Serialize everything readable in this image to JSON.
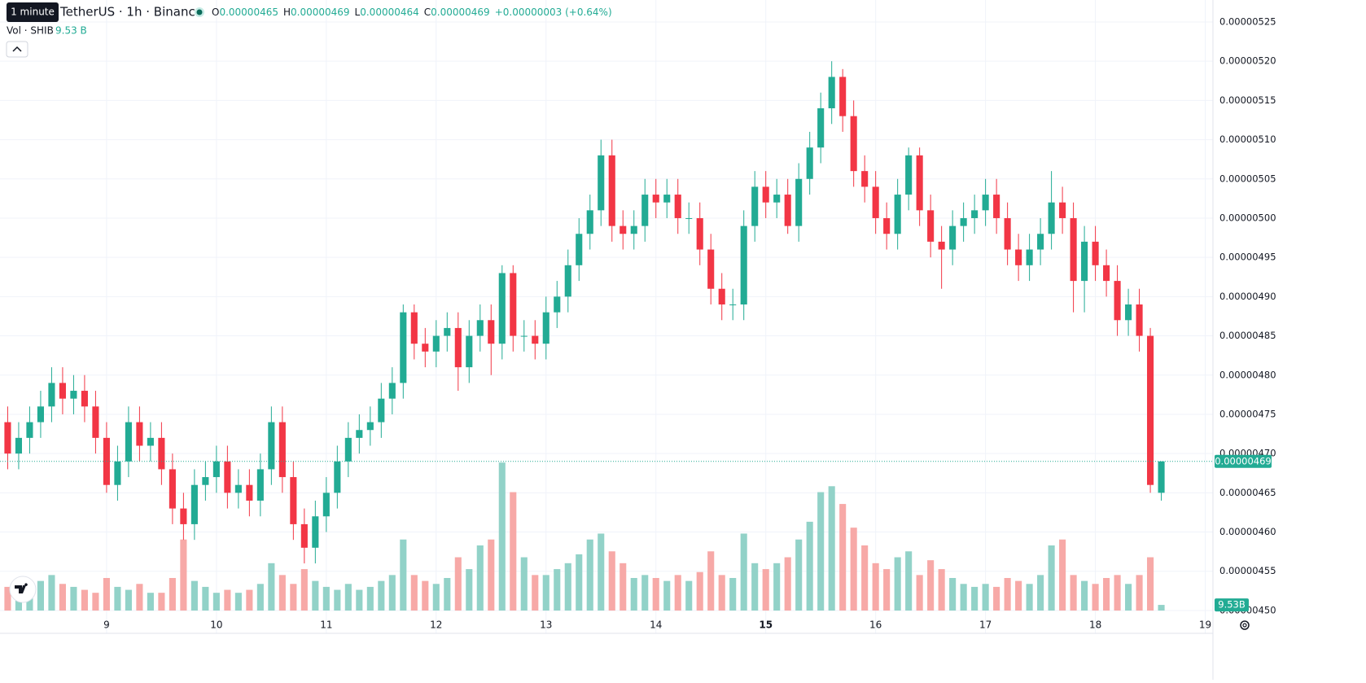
{
  "chart_data": {
    "type": "candlestick",
    "title": "TetherUS · 1h · Binance",
    "tooltip": "1 minute",
    "ohlc_legend": [
      "O",
      "0.00000465",
      "H",
      "0.00000469",
      "L",
      "0.00000464",
      "C",
      "0.00000469",
      "+0.00000003 (+0.64%)"
    ],
    "volume_legend": {
      "name": "Vol · SHIB",
      "value": "9.53 B"
    },
    "last_price_label": "0.00000469",
    "last_volume_label": "9.53B",
    "up_color": "#22ab94",
    "down_color": "#f23645",
    "up_volume_color": "#92d2c8",
    "down_volume_color": "#f7a9a7",
    "grid": true,
    "bold_xtick": 15,
    "xlim": [
      8.03,
      19.07
    ],
    "xticks": [
      9,
      10,
      11,
      12,
      13,
      14,
      15,
      16,
      17,
      18,
      19
    ],
    "ylim": [
      4.474e-06,
      5.278e-06
    ],
    "yticks": [
      {
        "value": 4.5e-06,
        "label": "0.00000450"
      },
      {
        "value": 4.55e-06,
        "label": "0.00000455"
      },
      {
        "value": 4.6e-06,
        "label": "0.00000460"
      },
      {
        "value": 4.65e-06,
        "label": "0.00000465"
      },
      {
        "value": 4.7e-06,
        "label": "0.00000470"
      },
      {
        "value": 4.75e-06,
        "label": "0.00000475"
      },
      {
        "value": 4.8e-06,
        "label": "0.00000480"
      },
      {
        "value": 4.85e-06,
        "label": "0.00000485"
      },
      {
        "value": 4.9e-06,
        "label": "0.00000490"
      },
      {
        "value": 4.95e-06,
        "label": "0.00000495"
      },
      {
        "value": 5e-06,
        "label": "0.00000500"
      },
      {
        "value": 5.05e-06,
        "label": "0.00000505"
      },
      {
        "value": 5.1e-06,
        "label": "0.00000510"
      },
      {
        "value": 5.15e-06,
        "label": "0.00000515"
      },
      {
        "value": 5.2e-06,
        "label": "0.00000520"
      },
      {
        "value": 5.25e-06,
        "label": "0.00000525"
      }
    ],
    "vlim": [
      0,
      330
    ],
    "x": [
      8.1,
      8.2,
      8.3,
      8.4,
      8.5,
      8.6,
      8.7,
      8.8,
      8.9,
      9.0,
      9.1,
      9.2,
      9.3,
      9.4,
      9.5,
      9.6,
      9.7,
      9.8,
      9.9,
      10.0,
      10.1,
      10.2,
      10.3,
      10.4,
      10.5,
      10.6,
      10.7,
      10.8,
      10.9,
      11.0,
      11.1,
      11.2,
      11.3,
      11.4,
      11.5,
      11.6,
      11.7,
      11.8,
      11.9,
      12.0,
      12.1,
      12.2,
      12.3,
      12.4,
      12.5,
      12.6,
      12.7,
      12.8,
      12.9,
      13.0,
      13.1,
      13.2,
      13.3,
      13.4,
      13.5,
      13.6,
      13.7,
      13.8,
      13.9,
      14.0,
      14.1,
      14.2,
      14.3,
      14.4,
      14.5,
      14.6,
      14.7,
      14.8,
      14.9,
      15.0,
      15.1,
      15.2,
      15.3,
      15.4,
      15.5,
      15.6,
      15.7,
      15.8,
      15.9,
      16.0,
      16.1,
      16.2,
      16.3,
      16.4,
      16.5,
      16.6,
      16.7,
      16.8,
      16.9,
      17.0,
      17.1,
      17.2,
      17.3,
      17.4,
      17.5,
      17.6,
      17.7,
      17.8,
      17.9,
      18.0,
      18.1,
      18.2,
      18.3,
      18.4,
      18.5,
      18.6
    ],
    "open": [
      4.74e-06,
      4.7e-06,
      4.72e-06,
      4.74e-06,
      4.76e-06,
      4.79e-06,
      4.77e-06,
      4.78e-06,
      4.76e-06,
      4.72e-06,
      4.66e-06,
      4.69e-06,
      4.74e-06,
      4.71e-06,
      4.72e-06,
      4.68e-06,
      4.63e-06,
      4.61e-06,
      4.66e-06,
      4.67e-06,
      4.69e-06,
      4.65e-06,
      4.66e-06,
      4.64e-06,
      4.68e-06,
      4.74e-06,
      4.67e-06,
      4.61e-06,
      4.58e-06,
      4.62e-06,
      4.65e-06,
      4.69e-06,
      4.72e-06,
      4.73e-06,
      4.74e-06,
      4.77e-06,
      4.79e-06,
      4.88e-06,
      4.84e-06,
      4.83e-06,
      4.85e-06,
      4.86e-06,
      4.81e-06,
      4.85e-06,
      4.87e-06,
      4.84e-06,
      4.93e-06,
      4.85e-06,
      4.85e-06,
      4.84e-06,
      4.88e-06,
      4.9e-06,
      4.94e-06,
      4.98e-06,
      5.01e-06,
      5.08e-06,
      4.99e-06,
      4.98e-06,
      4.99e-06,
      5.03e-06,
      5.02e-06,
      5.03e-06,
      5e-06,
      5e-06,
      4.96e-06,
      4.91e-06,
      4.89e-06,
      4.89e-06,
      4.99e-06,
      5.04e-06,
      5.02e-06,
      5.03e-06,
      4.99e-06,
      5.05e-06,
      5.09e-06,
      5.14e-06,
      5.18e-06,
      5.13e-06,
      5.06e-06,
      5.04e-06,
      5e-06,
      4.98e-06,
      5.03e-06,
      5.08e-06,
      5.01e-06,
      4.97e-06,
      4.96e-06,
      4.99e-06,
      5e-06,
      5.01e-06,
      5.03e-06,
      5e-06,
      4.96e-06,
      4.94e-06,
      4.96e-06,
      4.98e-06,
      5.02e-06,
      5e-06,
      4.92e-06,
      4.97e-06,
      4.94e-06,
      4.92e-06,
      4.87e-06,
      4.89e-06,
      4.85e-06,
      4.65e-06
    ],
    "high": [
      4.76e-06,
      4.74e-06,
      4.76e-06,
      4.78e-06,
      4.81e-06,
      4.81e-06,
      4.8e-06,
      4.8e-06,
      4.78e-06,
      4.74e-06,
      4.71e-06,
      4.76e-06,
      4.76e-06,
      4.74e-06,
      4.74e-06,
      4.7e-06,
      4.65e-06,
      4.68e-06,
      4.69e-06,
      4.71e-06,
      4.71e-06,
      4.68e-06,
      4.68e-06,
      4.7e-06,
      4.76e-06,
      4.76e-06,
      4.69e-06,
      4.63e-06,
      4.64e-06,
      4.67e-06,
      4.71e-06,
      4.74e-06,
      4.75e-06,
      4.76e-06,
      4.79e-06,
      4.81e-06,
      4.89e-06,
      4.89e-06,
      4.86e-06,
      4.87e-06,
      4.88e-06,
      4.88e-06,
      4.87e-06,
      4.89e-06,
      4.89e-06,
      4.94e-06,
      4.94e-06,
      4.87e-06,
      4.87e-06,
      4.9e-06,
      4.92e-06,
      4.96e-06,
      5e-06,
      5.03e-06,
      5.1e-06,
      5.1e-06,
      5.01e-06,
      5.01e-06,
      5.05e-06,
      5.05e-06,
      5.05e-06,
      5.05e-06,
      5.02e-06,
      5.02e-06,
      4.98e-06,
      4.93e-06,
      4.91e-06,
      5.01e-06,
      5.06e-06,
      5.06e-06,
      5.05e-06,
      5.05e-06,
      5.07e-06,
      5.11e-06,
      5.16e-06,
      5.2e-06,
      5.19e-06,
      5.15e-06,
      5.08e-06,
      5.06e-06,
      5.02e-06,
      5.05e-06,
      5.09e-06,
      5.09e-06,
      5.03e-06,
      4.99e-06,
      5.01e-06,
      5.02e-06,
      5.03e-06,
      5.05e-06,
      5.05e-06,
      5.02e-06,
      4.98e-06,
      4.98e-06,
      5e-06,
      5.06e-06,
      5.04e-06,
      5.02e-06,
      4.99e-06,
      4.99e-06,
      4.96e-06,
      4.94e-06,
      4.91e-06,
      4.91e-06,
      4.86e-06,
      4.69e-06
    ],
    "low": [
      4.68e-06,
      4.68e-06,
      4.7e-06,
      4.72e-06,
      4.74e-06,
      4.75e-06,
      4.75e-06,
      4.74e-06,
      4.7e-06,
      4.65e-06,
      4.64e-06,
      4.67e-06,
      4.69e-06,
      4.69e-06,
      4.66e-06,
      4.61e-06,
      4.59e-06,
      4.59e-06,
      4.64e-06,
      4.65e-06,
      4.63e-06,
      4.63e-06,
      4.62e-06,
      4.62e-06,
      4.66e-06,
      4.65e-06,
      4.59e-06,
      4.56e-06,
      4.56e-06,
      4.6e-06,
      4.63e-06,
      4.67e-06,
      4.7e-06,
      4.71e-06,
      4.72e-06,
      4.75e-06,
      4.77e-06,
      4.82e-06,
      4.81e-06,
      4.81e-06,
      4.83e-06,
      4.78e-06,
      4.79e-06,
      4.83e-06,
      4.8e-06,
      4.82e-06,
      4.83e-06,
      4.83e-06,
      4.82e-06,
      4.82e-06,
      4.86e-06,
      4.88e-06,
      4.92e-06,
      4.96e-06,
      4.99e-06,
      4.97e-06,
      4.96e-06,
      4.96e-06,
      4.97e-06,
      5e-06,
      5e-06,
      4.98e-06,
      4.98e-06,
      4.94e-06,
      4.89e-06,
      4.87e-06,
      4.87e-06,
      4.87e-06,
      4.97e-06,
      5e-06,
      5e-06,
      4.98e-06,
      4.97e-06,
      5.03e-06,
      5.07e-06,
      5.12e-06,
      5.11e-06,
      5.04e-06,
      5.02e-06,
      4.98e-06,
      4.96e-06,
      4.96e-06,
      5.01e-06,
      4.99e-06,
      4.95e-06,
      4.91e-06,
      4.94e-06,
      4.97e-06,
      4.98e-06,
      4.99e-06,
      4.98e-06,
      4.94e-06,
      4.92e-06,
      4.92e-06,
      4.94e-06,
      4.96e-06,
      4.98e-06,
      4.88e-06,
      4.88e-06,
      4.92e-06,
      4.9e-06,
      4.85e-06,
      4.85e-06,
      4.83e-06,
      4.65e-06,
      4.64e-06
    ],
    "close": [
      4.7e-06,
      4.72e-06,
      4.74e-06,
      4.76e-06,
      4.79e-06,
      4.77e-06,
      4.78e-06,
      4.76e-06,
      4.72e-06,
      4.66e-06,
      4.69e-06,
      4.74e-06,
      4.71e-06,
      4.72e-06,
      4.68e-06,
      4.63e-06,
      4.61e-06,
      4.66e-06,
      4.67e-06,
      4.69e-06,
      4.65e-06,
      4.66e-06,
      4.64e-06,
      4.68e-06,
      4.74e-06,
      4.67e-06,
      4.61e-06,
      4.58e-06,
      4.62e-06,
      4.65e-06,
      4.69e-06,
      4.72e-06,
      4.73e-06,
      4.74e-06,
      4.77e-06,
      4.79e-06,
      4.88e-06,
      4.84e-06,
      4.83e-06,
      4.85e-06,
      4.86e-06,
      4.81e-06,
      4.85e-06,
      4.87e-06,
      4.84e-06,
      4.93e-06,
      4.85e-06,
      4.85e-06,
      4.84e-06,
      4.88e-06,
      4.9e-06,
      4.94e-06,
      4.98e-06,
      5.01e-06,
      5.08e-06,
      4.99e-06,
      4.98e-06,
      4.99e-06,
      5.03e-06,
      5.02e-06,
      5.03e-06,
      5e-06,
      5e-06,
      4.96e-06,
      4.91e-06,
      4.89e-06,
      4.89e-06,
      4.99e-06,
      5.04e-06,
      5.02e-06,
      5.03e-06,
      4.99e-06,
      5.05e-06,
      5.09e-06,
      5.14e-06,
      5.18e-06,
      5.13e-06,
      5.06e-06,
      5.04e-06,
      5e-06,
      4.98e-06,
      5.03e-06,
      5.08e-06,
      5.01e-06,
      4.97e-06,
      4.96e-06,
      4.99e-06,
      5e-06,
      5.01e-06,
      5.03e-06,
      5e-06,
      4.96e-06,
      4.94e-06,
      4.96e-06,
      4.98e-06,
      5.02e-06,
      5e-06,
      4.92e-06,
      4.97e-06,
      4.94e-06,
      4.92e-06,
      4.87e-06,
      4.89e-06,
      4.85e-06,
      4.66e-06,
      4.69e-06
    ],
    "volume": [
      40,
      45,
      35,
      50,
      60,
      45,
      40,
      35,
      30,
      55,
      40,
      35,
      45,
      30,
      30,
      55,
      120,
      50,
      40,
      30,
      35,
      30,
      35,
      45,
      80,
      60,
      45,
      70,
      50,
      40,
      35,
      45,
      35,
      40,
      50,
      60,
      120,
      60,
      50,
      45,
      55,
      90,
      70,
      110,
      120,
      250,
      200,
      90,
      60,
      60,
      70,
      80,
      95,
      120,
      130,
      100,
      80,
      55,
      60,
      55,
      50,
      60,
      50,
      65,
      100,
      60,
      55,
      130,
      80,
      70,
      80,
      90,
      120,
      150,
      200,
      210,
      180,
      140,
      110,
      80,
      70,
      90,
      100,
      60,
      85,
      70,
      55,
      45,
      40,
      45,
      40,
      55,
      50,
      45,
      60,
      110,
      120,
      60,
      50,
      45,
      55,
      60,
      45,
      60,
      90,
      9.53
    ]
  }
}
